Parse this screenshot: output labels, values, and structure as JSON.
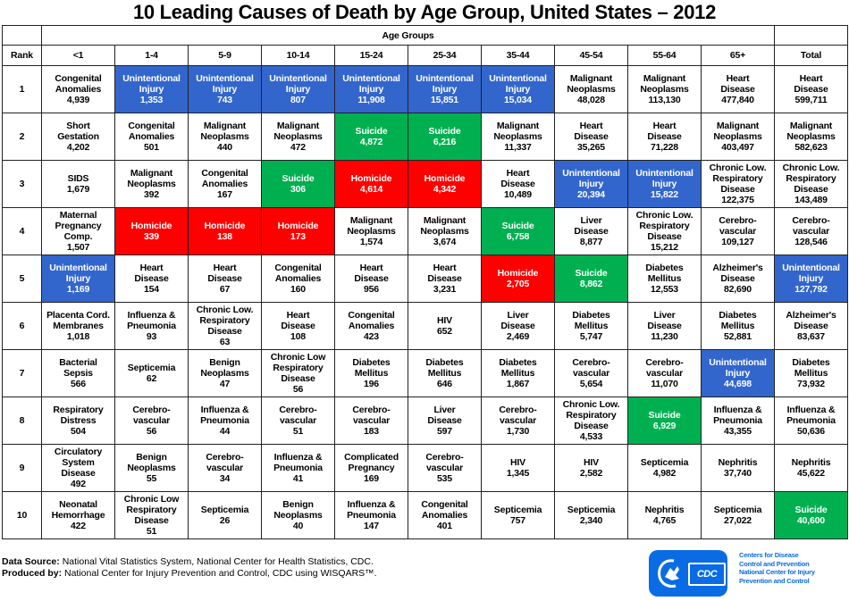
{
  "chart_data": {
    "type": "table",
    "title": "10 Leading Causes of Death by Age Group, United States – 2012",
    "group_header": "Age Groups",
    "rank_header": "Rank",
    "columns": [
      "<1",
      "1-4",
      "5-9",
      "10-14",
      "15-24",
      "25-34",
      "35-44",
      "45-54",
      "55-64",
      "65+",
      "Total"
    ],
    "color_legend": {
      "Unintentional Injury": "#3366CC",
      "Suicide": "#00B050",
      "Homicide": "#FF0000"
    },
    "rows": [
      {
        "rank": "1",
        "cells": [
          {
            "cause": "Congenital\nAnomalies",
            "deaths": "4,939"
          },
          {
            "cause": "Unintentional\nInjury",
            "deaths": "1,353",
            "color": "blue"
          },
          {
            "cause": "Unintentional\nInjury",
            "deaths": "743",
            "color": "blue"
          },
          {
            "cause": "Unintentional\nInjury",
            "deaths": "807",
            "color": "blue"
          },
          {
            "cause": "Unintentional\nInjury",
            "deaths": "11,908",
            "color": "blue"
          },
          {
            "cause": "Unintentional\nInjury",
            "deaths": "15,851",
            "color": "blue"
          },
          {
            "cause": "Unintentional\nInjury",
            "deaths": "15,034",
            "color": "blue"
          },
          {
            "cause": "Malignant\nNeoplasms",
            "deaths": "48,028"
          },
          {
            "cause": "Malignant\nNeoplasms",
            "deaths": "113,130"
          },
          {
            "cause": "Heart\nDisease",
            "deaths": "477,840"
          },
          {
            "cause": "Heart\nDisease",
            "deaths": "599,711"
          }
        ]
      },
      {
        "rank": "2",
        "cells": [
          {
            "cause": "Short\nGestation",
            "deaths": "4,202"
          },
          {
            "cause": "Congenital\nAnomalies",
            "deaths": "501"
          },
          {
            "cause": "Malignant\nNeoplasms",
            "deaths": "440"
          },
          {
            "cause": "Malignant\nNeoplasms",
            "deaths": "472"
          },
          {
            "cause": "Suicide",
            "deaths": "4,872",
            "color": "green"
          },
          {
            "cause": "Suicide",
            "deaths": "6,216",
            "color": "green"
          },
          {
            "cause": "Malignant\nNeoplasms",
            "deaths": "11,337"
          },
          {
            "cause": "Heart\nDisease",
            "deaths": "35,265"
          },
          {
            "cause": "Heart\nDisease",
            "deaths": "71,228"
          },
          {
            "cause": "Malignant\nNeoplasms",
            "deaths": "403,497"
          },
          {
            "cause": "Malignant\nNeoplasms",
            "deaths": "582,623"
          }
        ]
      },
      {
        "rank": "3",
        "cells": [
          {
            "cause": "SIDS",
            "deaths": "1,679"
          },
          {
            "cause": "Malignant\nNeoplasms",
            "deaths": "392"
          },
          {
            "cause": "Congenital\nAnomalies",
            "deaths": "167"
          },
          {
            "cause": "Suicide",
            "deaths": "306",
            "color": "green"
          },
          {
            "cause": "Homicide",
            "deaths": "4,614",
            "color": "red"
          },
          {
            "cause": "Homicide",
            "deaths": "4,342",
            "color": "red"
          },
          {
            "cause": "Heart\nDisease",
            "deaths": "10,489"
          },
          {
            "cause": "Unintentional\nInjury",
            "deaths": "20,394",
            "color": "blue"
          },
          {
            "cause": "Unintentional\nInjury",
            "deaths": "15,822",
            "color": "blue"
          },
          {
            "cause": "Chronic Low.\nRespiratory\nDisease",
            "deaths": "122,375"
          },
          {
            "cause": "Chronic Low.\nRespiratory\nDisease",
            "deaths": "143,489"
          }
        ]
      },
      {
        "rank": "4",
        "cells": [
          {
            "cause": "Maternal\nPregnancy\nComp.",
            "deaths": "1,507"
          },
          {
            "cause": "Homicide",
            "deaths": "339",
            "color": "red"
          },
          {
            "cause": "Homicide",
            "deaths": "138",
            "color": "red"
          },
          {
            "cause": "Homicide",
            "deaths": "173",
            "color": "red"
          },
          {
            "cause": "Malignant\nNeoplasms",
            "deaths": "1,574"
          },
          {
            "cause": "Malignant\nNeoplasms",
            "deaths": "3,674"
          },
          {
            "cause": "Suicide",
            "deaths": "6,758",
            "color": "green"
          },
          {
            "cause": "Liver\nDisease",
            "deaths": "8,877"
          },
          {
            "cause": "Chronic Low.\nRespiratory\nDisease",
            "deaths": "15,212"
          },
          {
            "cause": "Cerebro-\nvascular",
            "deaths": "109,127"
          },
          {
            "cause": "Cerebro-\nvascular",
            "deaths": "128,546"
          }
        ]
      },
      {
        "rank": "5",
        "cells": [
          {
            "cause": "Unintentional\nInjury",
            "deaths": "1,169",
            "color": "blue"
          },
          {
            "cause": "Heart\nDisease",
            "deaths": "154"
          },
          {
            "cause": "Heart\nDisease",
            "deaths": "67"
          },
          {
            "cause": "Congenital\nAnomalies",
            "deaths": "160"
          },
          {
            "cause": "Heart\nDisease",
            "deaths": "956"
          },
          {
            "cause": "Heart\nDisease",
            "deaths": "3,231"
          },
          {
            "cause": "Homicide",
            "deaths": "2,705",
            "color": "red"
          },
          {
            "cause": "Suicide",
            "deaths": "8,862",
            "color": "green"
          },
          {
            "cause": "Diabetes\nMellitus",
            "deaths": "12,553"
          },
          {
            "cause": "Alzheimer's\nDisease",
            "deaths": "82,690"
          },
          {
            "cause": "Unintentional\nInjury",
            "deaths": "127,792",
            "color": "blue"
          }
        ]
      },
      {
        "rank": "6",
        "cells": [
          {
            "cause": "Placenta Cord.\nMembranes",
            "deaths": "1,018"
          },
          {
            "cause": "Influenza &\nPneumonia",
            "deaths": "93"
          },
          {
            "cause": "Chronic Low.\nRespiratory\nDisease",
            "deaths": "63"
          },
          {
            "cause": "Heart\nDisease",
            "deaths": "108"
          },
          {
            "cause": "Congenital\nAnomalies",
            "deaths": "423"
          },
          {
            "cause": "HIV",
            "deaths": "652"
          },
          {
            "cause": "Liver\nDisease",
            "deaths": "2,469"
          },
          {
            "cause": "Diabetes\nMellitus",
            "deaths": "5,747"
          },
          {
            "cause": "Liver\nDisease",
            "deaths": "11,230"
          },
          {
            "cause": "Diabetes\nMellitus",
            "deaths": "52,881"
          },
          {
            "cause": "Alzheimer's\nDisease",
            "deaths": "83,637"
          }
        ]
      },
      {
        "rank": "7",
        "cells": [
          {
            "cause": "Bacterial\nSepsis",
            "deaths": "566"
          },
          {
            "cause": "Septicemia",
            "deaths": "62"
          },
          {
            "cause": "Benign\nNeoplasms",
            "deaths": "47"
          },
          {
            "cause": "Chronic Low\nRespiratory\nDisease",
            "deaths": "56"
          },
          {
            "cause": "Diabetes\nMellitus",
            "deaths": "196"
          },
          {
            "cause": "Diabetes\nMellitus",
            "deaths": "646"
          },
          {
            "cause": "Diabetes\nMellitus",
            "deaths": "1,867"
          },
          {
            "cause": "Cerebro-\nvascular",
            "deaths": "5,654"
          },
          {
            "cause": "Cerebro-\nvascular",
            "deaths": "11,070"
          },
          {
            "cause": "Unintentional\nInjury",
            "deaths": "44,698",
            "color": "blue"
          },
          {
            "cause": "Diabetes\nMellitus",
            "deaths": "73,932"
          }
        ]
      },
      {
        "rank": "8",
        "cells": [
          {
            "cause": "Respiratory\nDistress",
            "deaths": "504"
          },
          {
            "cause": "Cerebro-\nvascular",
            "deaths": "56"
          },
          {
            "cause": "Influenza &\nPneumonia",
            "deaths": "44"
          },
          {
            "cause": "Cerebro-\nvascular",
            "deaths": "51"
          },
          {
            "cause": "Cerebro-\nvascular",
            "deaths": "183"
          },
          {
            "cause": "Liver\nDisease",
            "deaths": "597"
          },
          {
            "cause": "Cerebro-\nvascular",
            "deaths": "1,730"
          },
          {
            "cause": "Chronic Low.\nRespiratory\nDisease",
            "deaths": "4,533"
          },
          {
            "cause": "Suicide",
            "deaths": "6,929",
            "color": "green"
          },
          {
            "cause": "Influenza &\nPneumonia",
            "deaths": "43,355"
          },
          {
            "cause": "Influenza &\nPneumonia",
            "deaths": "50,636"
          }
        ]
      },
      {
        "rank": "9",
        "cells": [
          {
            "cause": "Circulatory\nSystem\nDisease",
            "deaths": "492"
          },
          {
            "cause": "Benign\nNeoplasms",
            "deaths": "55"
          },
          {
            "cause": "Cerebro-\nvascular",
            "deaths": "34"
          },
          {
            "cause": "Influenza &\nPneumonia",
            "deaths": "41"
          },
          {
            "cause": "Complicated\nPregnancy",
            "deaths": "169"
          },
          {
            "cause": "Cerebro-\nvascular",
            "deaths": "535"
          },
          {
            "cause": "HIV",
            "deaths": "1,345"
          },
          {
            "cause": "HIV",
            "deaths": "2,582"
          },
          {
            "cause": "Septicemia",
            "deaths": "4,982"
          },
          {
            "cause": "Nephritis",
            "deaths": "37,740"
          },
          {
            "cause": "Nephritis",
            "deaths": "45,622"
          }
        ]
      },
      {
        "rank": "10",
        "cells": [
          {
            "cause": "Neonatal\nHemorrhage",
            "deaths": "422"
          },
          {
            "cause": "Chronic Low\nRespiratory\nDisease",
            "deaths": "51"
          },
          {
            "cause": "Septicemia",
            "deaths": "26"
          },
          {
            "cause": "Benign\nNeoplasms",
            "deaths": "40"
          },
          {
            "cause": "Influenza &\nPneumonia",
            "deaths": "147"
          },
          {
            "cause": "Congenital\nAnomalies",
            "deaths": "401"
          },
          {
            "cause": "Septicemia",
            "deaths": "757"
          },
          {
            "cause": "Septicemia",
            "deaths": "2,340"
          },
          {
            "cause": "Nephritis",
            "deaths": "4,765"
          },
          {
            "cause": "Septicemia",
            "deaths": "27,022"
          },
          {
            "cause": "Suicide",
            "deaths": "40,600",
            "color": "green"
          }
        ]
      }
    ]
  },
  "footer": {
    "source_label": "Data Source:",
    "source_text": " National Vital Statistics System, National Center for Health Statistics, CDC.",
    "produced_label": "Produced by:",
    "produced_text": " National Center for Injury Prevention and Control, CDC using WISQARS™."
  },
  "logo": {
    "icon": "hhs-eagle-icon",
    "badge_text": "CDC",
    "org_lines": [
      "Centers for Disease",
      "Control and Prevention",
      "National Center for Injury",
      "Prevention and Control"
    ]
  },
  "colors": {
    "blue": "#3366CC",
    "green": "#00B050",
    "red": "#FF0000",
    "logo_blue": "#0A6CE5"
  }
}
